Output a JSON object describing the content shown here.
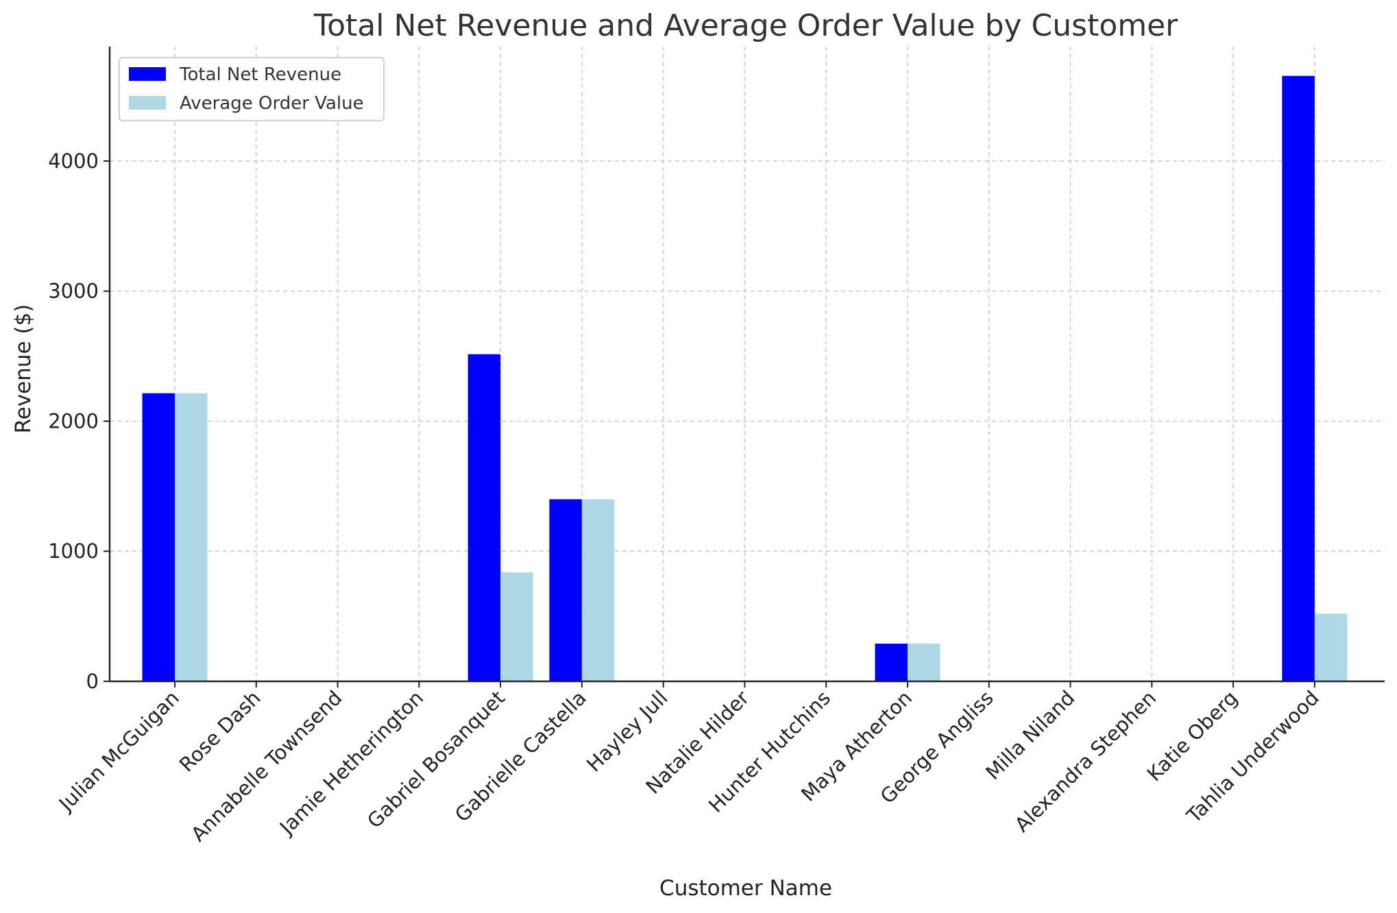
{
  "chart_data": {
    "type": "bar",
    "title": "Total Net Revenue and Average Order Value by Customer",
    "xlabel": "Customer Name",
    "ylabel": "Revenue ($)",
    "ylim": [
      0,
      4880
    ],
    "yticks": [
      0,
      1000,
      2000,
      3000,
      4000
    ],
    "grid": true,
    "legend_position": "top-left",
    "categories": [
      "Julian McGuigan",
      "Rose Dash",
      "Annabelle Townsend",
      "Jamie Hetherington",
      "Gabriel Bosanquet",
      "Gabrielle Castella",
      "Hayley Jull",
      "Natalie Hilder",
      "Hunter Hutchins",
      "Maya Atherton",
      "George Angliss",
      "Milla Niland",
      "Alexandra Stephen",
      "Katie Oberg",
      "Tahlia Underwood"
    ],
    "series": [
      {
        "name": "Total Net Revenue",
        "color": "#0000ff",
        "values": [
          2215,
          0,
          0,
          0,
          2515,
          1400,
          0,
          0,
          0,
          290,
          0,
          0,
          0,
          0,
          4655
        ]
      },
      {
        "name": "Average Order Value",
        "color": "#add8e6",
        "values": [
          2215,
          0,
          0,
          0,
          838,
          1400,
          0,
          0,
          0,
          290,
          0,
          0,
          0,
          0,
          520
        ]
      }
    ]
  }
}
